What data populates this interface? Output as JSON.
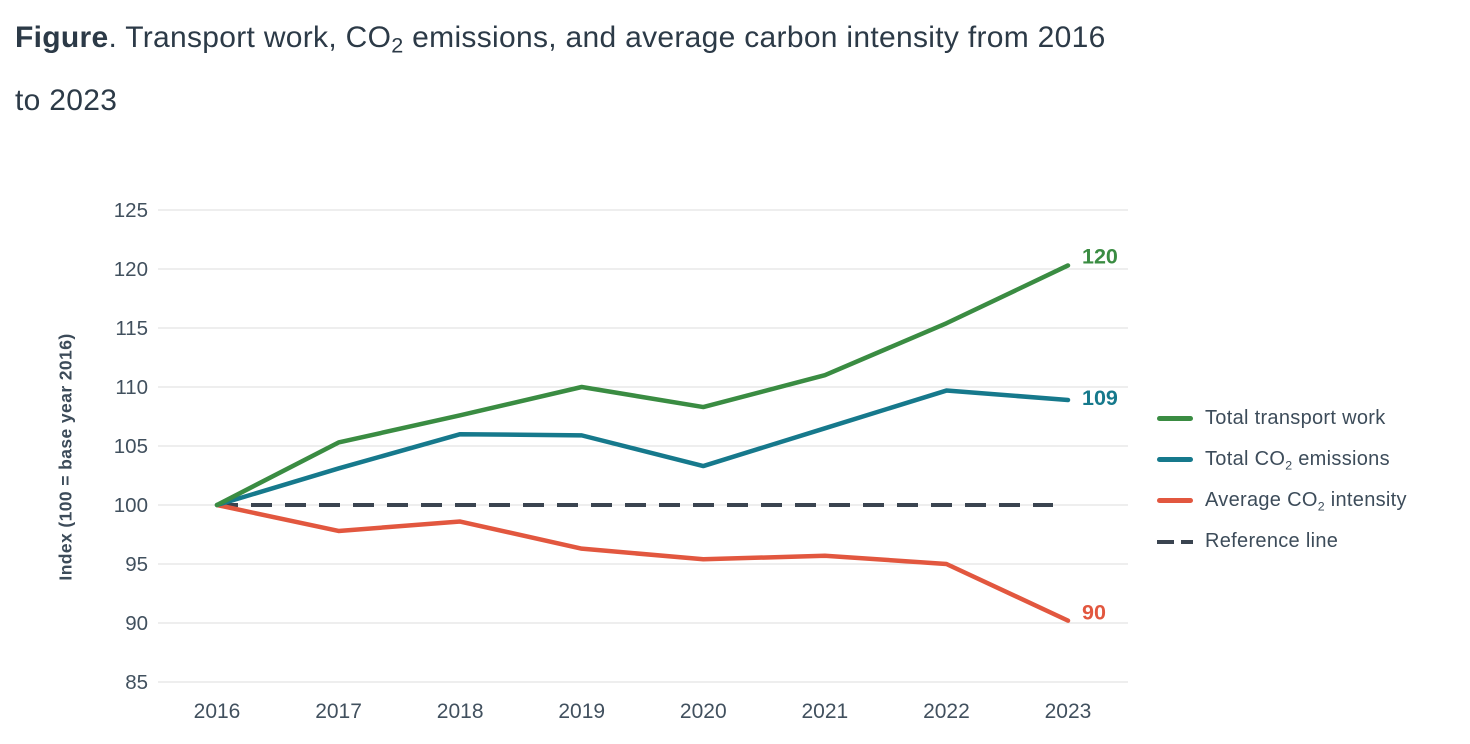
{
  "title": {
    "bold": "Figure",
    "line1_pre_sub": ". Transport work, CO",
    "sub": "2",
    "line1_post_sub": " emissions, and average carbon intensity from 2016",
    "line2": "to 2023"
  },
  "chart_data": {
    "type": "line",
    "title": "Transport work, CO2 emissions, and average carbon intensity from 2016 to 2023",
    "categories": [
      "2016",
      "2017",
      "2018",
      "2019",
      "2020",
      "2021",
      "2022",
      "2023"
    ],
    "ylabel": "Index (100 = base year 2016)",
    "ylim": [
      85,
      125
    ],
    "yticks": [
      125,
      120,
      115,
      110,
      105,
      100,
      95,
      90,
      85
    ],
    "grid": true,
    "legend_position": "right",
    "series": [
      {
        "name": "Total transport work",
        "values": [
          100,
          105.3,
          107.6,
          110,
          108.3,
          111,
          115.4,
          120.3
        ],
        "color": "#3a8c42",
        "end_label": "120",
        "dashed": false
      },
      {
        "name": "Total CO2 emissions",
        "values": [
          100,
          103.1,
          106,
          105.9,
          103.3,
          106.5,
          109.7,
          108.9
        ],
        "color": "#16798c",
        "end_label": "109",
        "dashed": false
      },
      {
        "name": "Average CO2 intensity",
        "values": [
          100,
          97.8,
          98.6,
          96.3,
          95.4,
          95.7,
          95,
          90.2
        ],
        "color": "#e2573f",
        "end_label": "90",
        "dashed": false
      },
      {
        "name": "Reference line",
        "values": [
          100,
          100,
          100,
          100,
          100,
          100,
          100,
          100
        ],
        "color": "#3a4450",
        "end_label": "",
        "dashed": true
      }
    ]
  },
  "legend": {
    "items": [
      {
        "pre": "Total transport work",
        "sub": "",
        "post": ""
      },
      {
        "pre": "Total CO",
        "sub": "2",
        "post": " emissions"
      },
      {
        "pre": "Average CO",
        "sub": "2",
        "post": " intensity"
      },
      {
        "pre": "Reference line",
        "sub": "",
        "post": ""
      }
    ]
  },
  "colors": {
    "title_text": "#2c3a47",
    "axis_text": "#41505e",
    "gridline": "#dedede"
  }
}
